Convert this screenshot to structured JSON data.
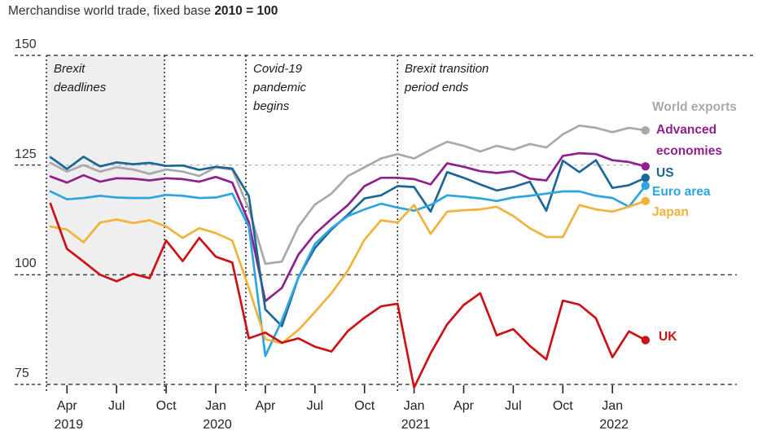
{
  "title": {
    "prefix": "Merchandise world trade, fixed base ",
    "bold": "2010 = 100"
  },
  "colors": {
    "world_exports": "#a9a9ad",
    "advanced_economies": "#8e218b",
    "us": "#1c6795",
    "euro_area": "#2ea4e0",
    "japan": "#f0b33c",
    "uk": "#cb1215",
    "grid_dark": "#444444",
    "grid_light": "#bdbdbd",
    "event_line": "#222222",
    "band_fill": "#efefef"
  },
  "chart_data": {
    "type": "line",
    "title": "Merchandise world trade, fixed base 2010 = 100",
    "ylim": [
      75,
      150
    ],
    "yticks": [
      150,
      125,
      100,
      75
    ],
    "grid": "dashed-horizontal",
    "legend_position": "right",
    "months": [
      "Mar 2019",
      "Apr 2019",
      "May 2019",
      "Jun 2019",
      "Jul 2019",
      "Aug 2019",
      "Sep 2019",
      "Oct 2019",
      "Nov 2019",
      "Dec 2019",
      "Jan 2020",
      "Feb 2020",
      "Mar 2020",
      "Apr 2020",
      "May 2020",
      "Jun 2020",
      "Jul 2020",
      "Aug 2020",
      "Sep 2020",
      "Oct 2020",
      "Nov 2020",
      "Dec 2020",
      "Jan 2021",
      "Feb 2021",
      "Mar 2021",
      "Apr 2021",
      "May 2021",
      "Jun 2021",
      "Jul 2021",
      "Aug 2021",
      "Sep 2021",
      "Oct 2021",
      "Nov 2021",
      "Dec 2021",
      "Jan 2022",
      "Feb 2022",
      "Mar 2022"
    ],
    "series": [
      {
        "name": "World exports",
        "color_key": "world_exports",
        "values": [
          125.5,
          123.5,
          125,
          123.5,
          124.5,
          124,
          123,
          124,
          123.5,
          122.5,
          124.5,
          124,
          115,
          102.5,
          103,
          111,
          116,
          118.5,
          122.5,
          124.5,
          126.5,
          127.5,
          126.5,
          128.5,
          130.3,
          129.4,
          128.1,
          129.4,
          128.5,
          129.8,
          129,
          132,
          134,
          133.5,
          132.5,
          133.5,
          132.9
        ]
      },
      {
        "name": "Advanced economies",
        "color_key": "advanced_economies",
        "values": [
          122.4,
          121,
          122.7,
          121.2,
          122,
          121.9,
          121.5,
          122,
          121.8,
          121.2,
          122.3,
          121,
          112,
          94,
          97,
          104.6,
          109.3,
          112.7,
          115.9,
          120.2,
          122.1,
          122.1,
          121.8,
          120.6,
          125.4,
          124.6,
          123.6,
          123.2,
          123.6,
          121.9,
          121.5,
          127.1,
          127.7,
          127.5,
          126.1,
          125.7,
          124.7
        ]
      },
      {
        "name": "US",
        "color_key": "us",
        "values": [
          126.8,
          124.1,
          126.9,
          124.7,
          125.6,
          125.2,
          125.5,
          124.8,
          124.9,
          123.9,
          124.6,
          124.2,
          118,
          92.1,
          88.3,
          99.4,
          106.1,
          110.3,
          113.7,
          117.4,
          118.1,
          120.2,
          120,
          114.4,
          123.4,
          122.1,
          120.6,
          119.2,
          120,
          121.2,
          114.6,
          126,
          123.4,
          126.1,
          119.8,
          120.4,
          122.1
        ]
      },
      {
        "name": "Euro area",
        "color_key": "euro_area",
        "values": [
          119,
          117.2,
          117.5,
          118,
          117.6,
          117.5,
          117.5,
          118.2,
          118,
          117.5,
          117.6,
          118.5,
          111,
          81.5,
          89.6,
          99.4,
          107,
          110.6,
          113.4,
          114.9,
          116.2,
          115.3,
          114.6,
          115.9,
          118.1,
          117.8,
          117.4,
          116.8,
          117.6,
          118,
          118.5,
          119,
          119,
          118,
          117.5,
          115.5,
          120.3
        ]
      },
      {
        "name": "Japan",
        "color_key": "japan",
        "values": [
          111,
          110.3,
          107.4,
          111.9,
          112.6,
          111.8,
          112.4,
          111,
          108.4,
          110.6,
          109.5,
          107.8,
          97,
          85.3,
          84.4,
          87.4,
          91.5,
          95.8,
          101,
          108,
          112.4,
          111.9,
          115.9,
          109.3,
          114.4,
          114.7,
          114.9,
          115.5,
          113.4,
          110.6,
          108.6,
          108.6,
          115.9,
          114.9,
          114.4,
          115.5,
          116.8
        ]
      },
      {
        "name": "UK",
        "color_key": "uk",
        "values": [
          116.2,
          105.9,
          103,
          100,
          98.5,
          100.2,
          99.2,
          107.8,
          103.1,
          108.4,
          104.1,
          102.8,
          85.5,
          86.8,
          84.5,
          85.5,
          83.6,
          82.5,
          87.2,
          90.2,
          92.8,
          93.4,
          74.3,
          82.1,
          88.7,
          93.1,
          95.8,
          86.2,
          87.6,
          83.8,
          80.7,
          94.1,
          93.2,
          90.1,
          81.2,
          87.1,
          85.1
        ]
      }
    ],
    "events": [
      {
        "label": "Brexit deadlines",
        "type": "band",
        "month_pos_from": -0.25,
        "month_pos_to": 6.9
      },
      {
        "label": "Covid-19 pandemic begins",
        "type": "line",
        "month_pos": 11.82
      },
      {
        "label": "Brexit transition period ends",
        "type": "line",
        "month_pos": 21.0
      }
    ],
    "x_ticks": [
      {
        "month_index": 1,
        "label": "Apr"
      },
      {
        "month_index": 4,
        "label": "Jul"
      },
      {
        "month_index": 7,
        "label": "Oct"
      },
      {
        "month_index": 10,
        "label": "Jan"
      },
      {
        "month_index": 13,
        "label": "Apr"
      },
      {
        "month_index": 16,
        "label": "Jul"
      },
      {
        "month_index": 19,
        "label": "Oct"
      },
      {
        "month_index": 22,
        "label": "Jan"
      },
      {
        "month_index": 25,
        "label": "Apr"
      },
      {
        "month_index": 28,
        "label": "Jul"
      },
      {
        "month_index": 31,
        "label": "Oct"
      },
      {
        "month_index": 34,
        "label": "Jan"
      }
    ],
    "year_labels": [
      {
        "month_index": 1,
        "label": "2019"
      },
      {
        "month_index": 10,
        "label": "2020"
      },
      {
        "month_index": 22,
        "label": "2021"
      },
      {
        "month_index": 34,
        "label": "2022"
      }
    ]
  }
}
